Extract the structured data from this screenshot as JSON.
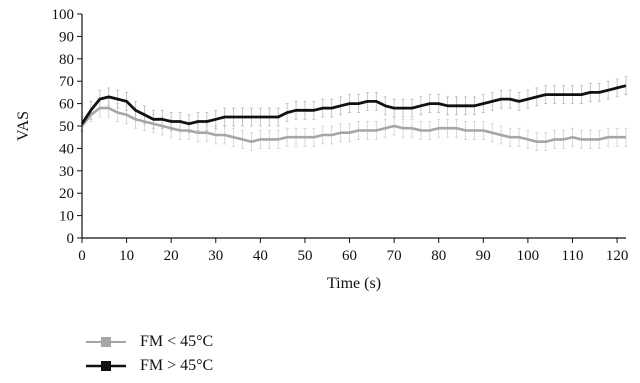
{
  "chart_data": {
    "type": "line",
    "xlabel": "Time (s)",
    "ylabel": "VAS",
    "xlim": [
      0,
      122
    ],
    "ylim": [
      0,
      100
    ],
    "xticks": [
      0,
      10,
      20,
      30,
      40,
      50,
      60,
      70,
      80,
      90,
      100,
      110,
      120
    ],
    "yticks": [
      0,
      10,
      20,
      30,
      40,
      50,
      60,
      70,
      80,
      90,
      100
    ],
    "grid": false,
    "legend_position": "bottom-left",
    "series": [
      {
        "name": "FM < 45°C",
        "color": "#a6a6a6",
        "marker": "square",
        "x": [
          0,
          2,
          4,
          6,
          8,
          10,
          12,
          14,
          16,
          18,
          20,
          22,
          24,
          26,
          28,
          30,
          32,
          34,
          36,
          38,
          40,
          42,
          44,
          46,
          48,
          50,
          52,
          54,
          56,
          58,
          60,
          62,
          64,
          66,
          68,
          70,
          72,
          74,
          76,
          78,
          80,
          82,
          84,
          86,
          88,
          90,
          92,
          94,
          96,
          98,
          100,
          102,
          104,
          106,
          108,
          110,
          112,
          114,
          116,
          118,
          120,
          122
        ],
        "y": [
          50,
          55,
          58,
          58,
          56,
          55,
          53,
          52,
          51,
          50,
          49,
          48,
          48,
          47,
          47,
          46,
          46,
          45,
          44,
          43,
          44,
          44,
          44,
          45,
          45,
          45,
          45,
          46,
          46,
          47,
          47,
          48,
          48,
          48,
          49,
          50,
          49,
          49,
          48,
          48,
          49,
          49,
          49,
          48,
          48,
          48,
          47,
          46,
          45,
          45,
          44,
          43,
          43,
          44,
          44,
          45,
          44,
          44,
          44,
          45,
          45,
          45
        ],
        "error": [
          3,
          3,
          4,
          4,
          4,
          4,
          4,
          4,
          4,
          4,
          4,
          4,
          4,
          4,
          4,
          4,
          4,
          4,
          4,
          4,
          4,
          4,
          4,
          4,
          4,
          4,
          4,
          4,
          4,
          4,
          4,
          4,
          4,
          4,
          4,
          4,
          4,
          4,
          4,
          4,
          4,
          4,
          4,
          4,
          4,
          4,
          4,
          4,
          4,
          4,
          4,
          4,
          4,
          4,
          4,
          4,
          4,
          4,
          4,
          4,
          4,
          4
        ]
      },
      {
        "name": "FM > 45°C",
        "color": "#111111",
        "marker": "square",
        "x": [
          0,
          2,
          4,
          6,
          8,
          10,
          12,
          14,
          16,
          18,
          20,
          22,
          24,
          26,
          28,
          30,
          32,
          34,
          36,
          38,
          40,
          42,
          44,
          46,
          48,
          50,
          52,
          54,
          56,
          58,
          60,
          62,
          64,
          66,
          68,
          70,
          72,
          74,
          76,
          78,
          80,
          82,
          84,
          86,
          88,
          90,
          92,
          94,
          96,
          98,
          100,
          102,
          104,
          106,
          108,
          110,
          112,
          114,
          116,
          118,
          120,
          122
        ],
        "y": [
          51,
          57,
          62,
          63,
          62,
          61,
          57,
          55,
          53,
          53,
          52,
          52,
          51,
          52,
          52,
          53,
          54,
          54,
          54,
          54,
          54,
          54,
          54,
          56,
          57,
          57,
          57,
          58,
          58,
          59,
          60,
          60,
          61,
          61,
          59,
          58,
          58,
          58,
          59,
          60,
          60,
          59,
          59,
          59,
          59,
          60,
          61,
          62,
          62,
          61,
          62,
          63,
          64,
          64,
          64,
          64,
          64,
          65,
          65,
          66,
          67,
          68
        ],
        "error": [
          3,
          4,
          4,
          4,
          4,
          4,
          4,
          4,
          4,
          4,
          4,
          4,
          4,
          4,
          4,
          4,
          4,
          4,
          4,
          4,
          4,
          4,
          4,
          4,
          4,
          4,
          4,
          4,
          4,
          4,
          4,
          4,
          4,
          4,
          4,
          4,
          4,
          4,
          4,
          4,
          4,
          4,
          4,
          4,
          4,
          4,
          4,
          4,
          4,
          4,
          4,
          4,
          4,
          4,
          4,
          4,
          4,
          4,
          4,
          4,
          4,
          4
        ]
      }
    ]
  }
}
